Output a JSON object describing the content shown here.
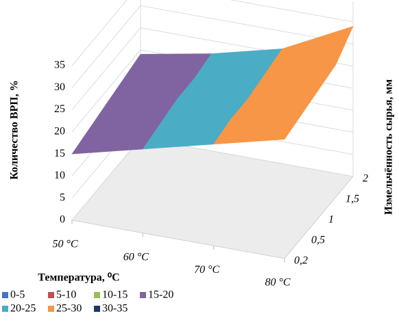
{
  "chart_data": {
    "type": "surface",
    "z_axis_label": "Количество ВРП, %",
    "x_axis_label": "Температура, ⁰С",
    "depth_axis_label": "Измельчённость сырья, мм",
    "categories": [
      "50 °C",
      "60 °C",
      "70 °C",
      "80 °C"
    ],
    "depth_categories": [
      "0,2",
      "0,5",
      "1",
      "1,5",
      "2"
    ],
    "values": [
      [
        15,
        19,
        23,
        27
      ],
      [
        16,
        20,
        24,
        28
      ],
      [
        17,
        21,
        24,
        29
      ],
      [
        18,
        21,
        25,
        30
      ],
      [
        19,
        22,
        26,
        34
      ]
    ],
    "zlim": [
      0,
      35
    ],
    "zticks": [
      0,
      5,
      10,
      15,
      20,
      25,
      30,
      35
    ],
    "bands": [
      {
        "label": "0-5",
        "range": [
          0,
          5
        ],
        "color": "#4472c4"
      },
      {
        "label": "5-10",
        "range": [
          5,
          10
        ],
        "color": "#c0504d"
      },
      {
        "label": "10-15",
        "range": [
          10,
          15
        ],
        "color": "#9bbb59"
      },
      {
        "label": "15-20",
        "range": [
          15,
          20
        ],
        "color": "#8064a2"
      },
      {
        "label": "20-25",
        "range": [
          20,
          25
        ],
        "color": "#4bacc6"
      },
      {
        "label": "25-30",
        "range": [
          25,
          30
        ],
        "color": "#f79646"
      },
      {
        "label": "30-35",
        "range": [
          30,
          35
        ],
        "color": "#1f3864"
      }
    ]
  }
}
